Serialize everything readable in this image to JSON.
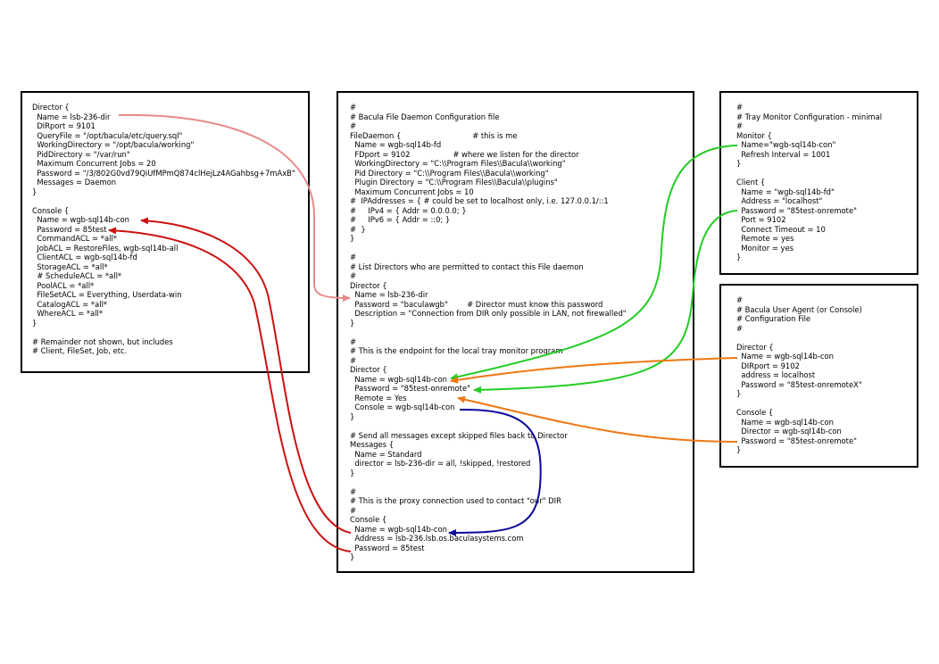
{
  "director_config": {
    "text": "Director {\n  Name = lsb-236-dir\n  DIRport = 9101\n  QueryFile = \"/opt/bacula/etc/query.sql\"\n  WorkingDirectory = \"/opt/bacula/working\"\n  PidDirectory = \"/var/run\"\n  Maximum Concurrent Jobs = 20\n  Password = \"/3/802G0vd79QiUfMPmQ874clHejLz4AGahbsg+7mAxB\"\n  Messages = Daemon\n}\n\nConsole {\n  Name = wgb-sql14b-con\n  Password = 85test\n  CommandACL = *all*\n  JobACL = RestoreFiles, wgb-sql14b-all\n  ClientACL = wgb-sql14b-fd\n  StorageACL = *all*\n  # ScheduleACL = *all*\n  PoolACL = *all*\n  FileSetACL = Everything, Userdata-win\n  CatalogACL = *all*\n  WhereACL = *all*\n}\n\n# Remainder not shown, but includes\n# Client, FileSet, Job, etc."
  },
  "filedaemon_config": {
    "text": "#\n# Bacula File Daemon Configuration file\n#\nFileDaemon {                              # this is me\n  Name = wgb-sql14b-fd\n  FDport = 9102                  # where we listen for the director\n  WorkingDirectory = \"C:\\\\Program Files\\\\Bacula\\\\working\"\n  Pid Directory = \"C:\\\\Program Files\\\\Bacula\\\\working\"\n  Plugin Directory = \"C:\\\\Program Files\\\\Bacula\\\\plugins\"\n  Maximum Concurrent Jobs = 10\n#  IPAddresses = { # could be set to localhost only, i.e. 127.0.0.1/::1\n#     IPv4 = { Addr = 0.0.0.0; }\n#     IPv6 = { Addr = ::0; }\n#  }\n}\n\n#\n# List Directors who are permitted to contact this File daemon\n#\nDirector {\n  Name = lsb-236-dir\n  Password = \"baculawgb\"        # Director must know this password\n  Description = \"Connection from DIR only possible in LAN, not firewalled\"\n}\n\n#\n# This is the endpoint for the local tray monitor program\n#\nDirector {\n  Name = wgb-sql14b-con\n  Password = \"85test-onremote\"\n  Remote = Yes\n  Console = wgb-sql14b-con\n}\n\n# Send all messages except skipped files back to Director\nMessages {\n  Name = Standard\n  director = lsb-236-dir = all, !skipped, !restored\n}\n\n#\n# This is the proxy connection used to contact \"our\" DIR\n#\nConsole {\n  Name = wgb-sql14b-con\n  Address = lsb-236.lsb.os.baculasystems.com\n  Password = 85test\n}"
  },
  "traymonitor_config": {
    "text": "#\n# Tray Monitor Configuration - minimal\n#\nMonitor {\n  Name=\"wgb-sql14b-con\"\n  Refresh Interval = 1001\n}\n\nClient {\n  Name = \"wgb-sql14b-fd\"\n  Address = \"localhost\"\n  Password = \"85test-onremote\"\n  Port = 9102\n  Connect Timeout = 10\n  Remote = yes\n  Monitor = yes\n}"
  },
  "console_config": {
    "text": "#\n# Bacula User Agent (or Console)\n# Configuration File\n#\n\nDirector {\n  Name = wgb-sql14b-con\n  DIRport = 9102\n  address = localhost\n  Password = \"85test-onremoteX\"\n}\n\nConsole {\n  Name = wgb-sql14b-con\n  Director = wgb-sql14b-con\n  Password = \"85test-onremote\"\n}"
  },
  "arrow_colors": {
    "director_name": "#e8898b",
    "console_link": "#cc1111",
    "tray_monitor": "#22cc22",
    "bconsole": "#ee7711",
    "proxy": "#0a0a99"
  }
}
